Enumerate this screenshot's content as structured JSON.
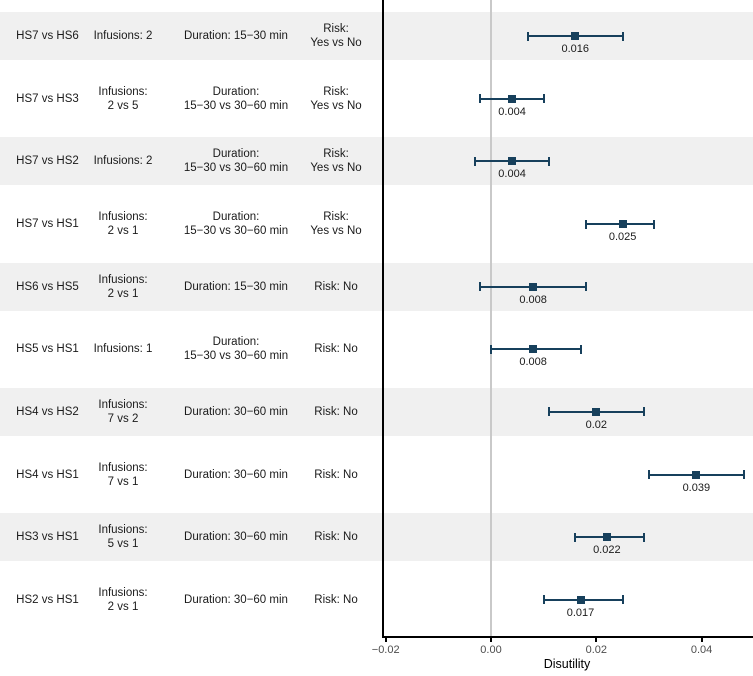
{
  "colors": {
    "marker": "#17405c",
    "error_bar": "#17405c",
    "stripe": "#f0f0f0",
    "reference_line": "#c9c9c9",
    "axis_line": "#000000",
    "tick_label": "#4d4d4d",
    "table_text": "#1a1a1a"
  },
  "table": {
    "rows": [
      {
        "comparison": "HS7 vs HS6",
        "infusions": [
          "Infusions: 2"
        ],
        "duration": [
          "Duration: 15−30 min"
        ],
        "risk": [
          "Risk:",
          "Yes vs No"
        ]
      },
      {
        "comparison": "HS7 vs HS3",
        "infusions": [
          "Infusions:",
          "2 vs 5"
        ],
        "duration": [
          "Duration:",
          "15−30 vs 30−60 min"
        ],
        "risk": [
          "Risk:",
          "Yes vs No"
        ]
      },
      {
        "comparison": "HS7 vs HS2",
        "infusions": [
          "Infusions: 2"
        ],
        "duration": [
          "Duration:",
          "15−30 vs 30−60 min"
        ],
        "risk": [
          "Risk:",
          "Yes vs No"
        ]
      },
      {
        "comparison": "HS7 vs HS1",
        "infusions": [
          "Infusions:",
          "2 vs 1"
        ],
        "duration": [
          "Duration:",
          "15−30 vs 30−60 min"
        ],
        "risk": [
          "Risk:",
          "Yes vs No"
        ]
      },
      {
        "comparison": "HS6 vs HS5",
        "infusions": [
          "Infusions:",
          "2 vs 1"
        ],
        "duration": [
          "Duration: 15−30 min"
        ],
        "risk": [
          "Risk: No"
        ]
      },
      {
        "comparison": "HS5 vs HS1",
        "infusions": [
          "Infusions: 1"
        ],
        "duration": [
          "Duration:",
          "15−30 vs 30−60 min"
        ],
        "risk": [
          "Risk: No"
        ]
      },
      {
        "comparison": "HS4 vs HS2",
        "infusions": [
          "Infusions:",
          "7 vs 2"
        ],
        "duration": [
          "Duration: 30−60 min"
        ],
        "risk": [
          "Risk: No"
        ]
      },
      {
        "comparison": "HS4 vs HS1",
        "infusions": [
          "Infusions:",
          "7 vs 1"
        ],
        "duration": [
          "Duration: 30−60 min"
        ],
        "risk": [
          "Risk: No"
        ]
      },
      {
        "comparison": "HS3 vs HS1",
        "infusions": [
          "Infusions:",
          "5 vs 1"
        ],
        "duration": [
          "Duration: 30−60 min"
        ],
        "risk": [
          "Risk: No"
        ]
      },
      {
        "comparison": "HS2 vs HS1",
        "infusions": [
          "Infusions:",
          "2 vs 1"
        ],
        "duration": [
          "Duration: 30−60 min"
        ],
        "risk": [
          "Risk: No"
        ]
      }
    ]
  },
  "chart_data": {
    "type": "scatter",
    "subtype": "forest_plot_with_error_bars",
    "title": "",
    "xlabel": "Disutility",
    "ylabel": "",
    "xlim": [
      -0.021,
      0.05
    ],
    "xticks": [
      {
        "value": -0.02,
        "label": "−0.02"
      },
      {
        "value": 0.0,
        "label": "0.00"
      },
      {
        "value": 0.02,
        "label": "0.02"
      },
      {
        "value": 0.04,
        "label": "0.04"
      }
    ],
    "reference_line_x": 0,
    "grid": false,
    "legend": "none",
    "categories": [
      "HS7 vs HS6",
      "HS7 vs HS3",
      "HS7 vs HS2",
      "HS7 vs HS1",
      "HS6 vs HS5",
      "HS5 vs HS1",
      "HS4 vs HS2",
      "HS4 vs HS1",
      "HS3 vs HS1",
      "HS2 vs HS1"
    ],
    "series": [
      {
        "name": "estimate",
        "values": [
          0.016,
          0.004,
          0.004,
          0.025,
          0.008,
          0.008,
          0.02,
          0.039,
          0.022,
          0.017
        ]
      },
      {
        "name": "ci_lower",
        "values": [
          0.007,
          -0.002,
          -0.003,
          0.018,
          -0.002,
          0.0,
          0.011,
          0.03,
          0.016,
          0.01
        ]
      },
      {
        "name": "ci_upper",
        "values": [
          0.025,
          0.01,
          0.011,
          0.031,
          0.018,
          0.017,
          0.029,
          0.048,
          0.029,
          0.025
        ]
      }
    ],
    "point_labels": [
      "0.016",
      "0.004",
      "0.004",
      "0.025",
      "0.008",
      "0.008",
      "0.02",
      "0.039",
      "0.022",
      "0.017"
    ]
  }
}
